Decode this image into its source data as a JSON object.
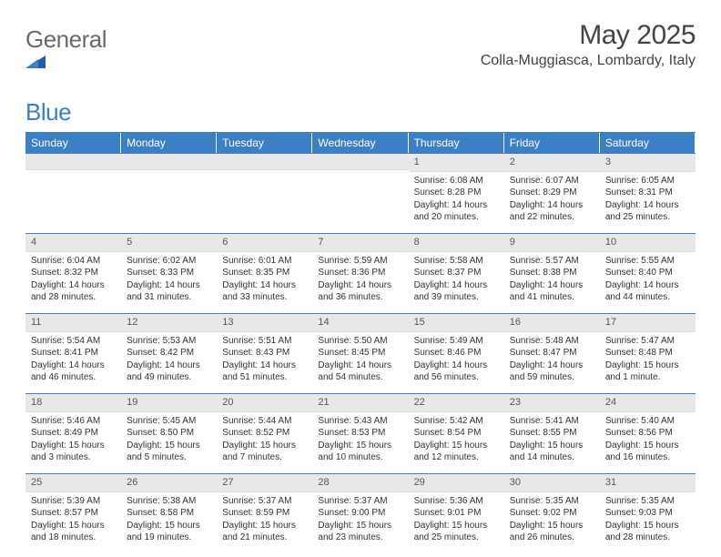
{
  "logo": {
    "word1": "General",
    "word2": "Blue"
  },
  "title": "May 2025",
  "location": "Colla-Muggiasca, Lombardy, Italy",
  "colors": {
    "header_bg": "#3b7fc4",
    "header_text": "#ffffff",
    "daynum_bg": "#e8e8e8",
    "text": "#333333",
    "logo_gray": "#6a6a6a",
    "logo_blue": "#3b7fc4"
  },
  "day_headers": [
    "Sunday",
    "Monday",
    "Tuesday",
    "Wednesday",
    "Thursday",
    "Friday",
    "Saturday"
  ],
  "cells": [
    {
      "blank": true
    },
    {
      "blank": true
    },
    {
      "blank": true
    },
    {
      "blank": true
    },
    {
      "n": "1",
      "sr": "Sunrise: 6:08 AM",
      "ss": "Sunset: 8:28 PM",
      "dl": "Daylight: 14 hours and 20 minutes."
    },
    {
      "n": "2",
      "sr": "Sunrise: 6:07 AM",
      "ss": "Sunset: 8:29 PM",
      "dl": "Daylight: 14 hours and 22 minutes."
    },
    {
      "n": "3",
      "sr": "Sunrise: 6:05 AM",
      "ss": "Sunset: 8:31 PM",
      "dl": "Daylight: 14 hours and 25 minutes."
    },
    {
      "n": "4",
      "sr": "Sunrise: 6:04 AM",
      "ss": "Sunset: 8:32 PM",
      "dl": "Daylight: 14 hours and 28 minutes."
    },
    {
      "n": "5",
      "sr": "Sunrise: 6:02 AM",
      "ss": "Sunset: 8:33 PM",
      "dl": "Daylight: 14 hours and 31 minutes."
    },
    {
      "n": "6",
      "sr": "Sunrise: 6:01 AM",
      "ss": "Sunset: 8:35 PM",
      "dl": "Daylight: 14 hours and 33 minutes."
    },
    {
      "n": "7",
      "sr": "Sunrise: 5:59 AM",
      "ss": "Sunset: 8:36 PM",
      "dl": "Daylight: 14 hours and 36 minutes."
    },
    {
      "n": "8",
      "sr": "Sunrise: 5:58 AM",
      "ss": "Sunset: 8:37 PM",
      "dl": "Daylight: 14 hours and 39 minutes."
    },
    {
      "n": "9",
      "sr": "Sunrise: 5:57 AM",
      "ss": "Sunset: 8:38 PM",
      "dl": "Daylight: 14 hours and 41 minutes."
    },
    {
      "n": "10",
      "sr": "Sunrise: 5:55 AM",
      "ss": "Sunset: 8:40 PM",
      "dl": "Daylight: 14 hours and 44 minutes."
    },
    {
      "n": "11",
      "sr": "Sunrise: 5:54 AM",
      "ss": "Sunset: 8:41 PM",
      "dl": "Daylight: 14 hours and 46 minutes."
    },
    {
      "n": "12",
      "sr": "Sunrise: 5:53 AM",
      "ss": "Sunset: 8:42 PM",
      "dl": "Daylight: 14 hours and 49 minutes."
    },
    {
      "n": "13",
      "sr": "Sunrise: 5:51 AM",
      "ss": "Sunset: 8:43 PM",
      "dl": "Daylight: 14 hours and 51 minutes."
    },
    {
      "n": "14",
      "sr": "Sunrise: 5:50 AM",
      "ss": "Sunset: 8:45 PM",
      "dl": "Daylight: 14 hours and 54 minutes."
    },
    {
      "n": "15",
      "sr": "Sunrise: 5:49 AM",
      "ss": "Sunset: 8:46 PM",
      "dl": "Daylight: 14 hours and 56 minutes."
    },
    {
      "n": "16",
      "sr": "Sunrise: 5:48 AM",
      "ss": "Sunset: 8:47 PM",
      "dl": "Daylight: 14 hours and 59 minutes."
    },
    {
      "n": "17",
      "sr": "Sunrise: 5:47 AM",
      "ss": "Sunset: 8:48 PM",
      "dl": "Daylight: 15 hours and 1 minute."
    },
    {
      "n": "18",
      "sr": "Sunrise: 5:46 AM",
      "ss": "Sunset: 8:49 PM",
      "dl": "Daylight: 15 hours and 3 minutes."
    },
    {
      "n": "19",
      "sr": "Sunrise: 5:45 AM",
      "ss": "Sunset: 8:50 PM",
      "dl": "Daylight: 15 hours and 5 minutes."
    },
    {
      "n": "20",
      "sr": "Sunrise: 5:44 AM",
      "ss": "Sunset: 8:52 PM",
      "dl": "Daylight: 15 hours and 7 minutes."
    },
    {
      "n": "21",
      "sr": "Sunrise: 5:43 AM",
      "ss": "Sunset: 8:53 PM",
      "dl": "Daylight: 15 hours and 10 minutes."
    },
    {
      "n": "22",
      "sr": "Sunrise: 5:42 AM",
      "ss": "Sunset: 8:54 PM",
      "dl": "Daylight: 15 hours and 12 minutes."
    },
    {
      "n": "23",
      "sr": "Sunrise: 5:41 AM",
      "ss": "Sunset: 8:55 PM",
      "dl": "Daylight: 15 hours and 14 minutes."
    },
    {
      "n": "24",
      "sr": "Sunrise: 5:40 AM",
      "ss": "Sunset: 8:56 PM",
      "dl": "Daylight: 15 hours and 16 minutes."
    },
    {
      "n": "25",
      "sr": "Sunrise: 5:39 AM",
      "ss": "Sunset: 8:57 PM",
      "dl": "Daylight: 15 hours and 18 minutes."
    },
    {
      "n": "26",
      "sr": "Sunrise: 5:38 AM",
      "ss": "Sunset: 8:58 PM",
      "dl": "Daylight: 15 hours and 19 minutes."
    },
    {
      "n": "27",
      "sr": "Sunrise: 5:37 AM",
      "ss": "Sunset: 8:59 PM",
      "dl": "Daylight: 15 hours and 21 minutes."
    },
    {
      "n": "28",
      "sr": "Sunrise: 5:37 AM",
      "ss": "Sunset: 9:00 PM",
      "dl": "Daylight: 15 hours and 23 minutes."
    },
    {
      "n": "29",
      "sr": "Sunrise: 5:36 AM",
      "ss": "Sunset: 9:01 PM",
      "dl": "Daylight: 15 hours and 25 minutes."
    },
    {
      "n": "30",
      "sr": "Sunrise: 5:35 AM",
      "ss": "Sunset: 9:02 PM",
      "dl": "Daylight: 15 hours and 26 minutes."
    },
    {
      "n": "31",
      "sr": "Sunrise: 5:35 AM",
      "ss": "Sunset: 9:03 PM",
      "dl": "Daylight: 15 hours and 28 minutes."
    }
  ]
}
